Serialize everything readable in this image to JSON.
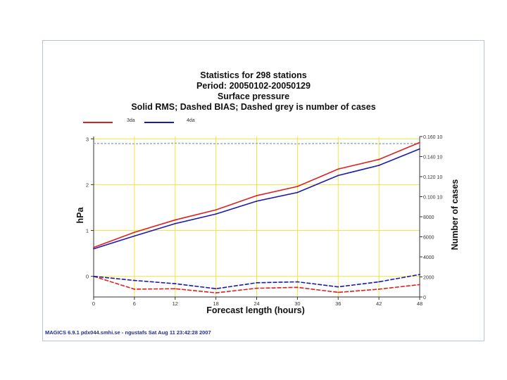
{
  "titles": {
    "line1": "Statistics for  298 stations",
    "line2": "Period: 20050102-20050129",
    "line3": "Surface pressure",
    "line4": "Solid RMS; Dashed BIAS; Dashed grey is number of cases"
  },
  "legend": [
    {
      "label": "3da",
      "color": "#e02020"
    },
    {
      "label": "4da",
      "color": "#1a1ab0"
    }
  ],
  "footer": "MAGICS 6.9.1 pdx044.smhi.se - ngustafs Sat Aug 11 23:42:28 2007",
  "colors": {
    "grid": "#f2e640",
    "cases": "#aaaaaa",
    "axis": "#333333"
  },
  "chart_data": {
    "type": "line",
    "xlabel": "Forecast length (hours)",
    "ylabel": "hPa",
    "y2label": "Number of cases",
    "x": [
      0,
      6,
      12,
      18,
      24,
      30,
      36,
      42,
      48
    ],
    "xticks": [
      "0",
      "6",
      "12",
      "18",
      "24",
      "30",
      "36",
      "42",
      "48"
    ],
    "ylim": [
      -0.45,
      3.05
    ],
    "yticks": [
      {
        "value": 3,
        "label": "3"
      },
      {
        "value": 2,
        "label": "2"
      },
      {
        "value": 1,
        "label": "1"
      },
      {
        "value": 0,
        "label": "0"
      }
    ],
    "y2lim": [
      0,
      16000
    ],
    "y2ticks": [
      {
        "value": 16000,
        "label": "0.160 10"
      },
      {
        "value": 14000,
        "label": "0.140 10"
      },
      {
        "value": 12000,
        "label": "0.120 10"
      },
      {
        "value": 10000,
        "label": "0.100 10"
      },
      {
        "value": 8000,
        "label": "8000"
      },
      {
        "value": 6000,
        "label": "6000"
      },
      {
        "value": 4000,
        "label": "4000"
      },
      {
        "value": 2000,
        "label": "2000"
      },
      {
        "value": 0,
        "label": "0"
      }
    ],
    "series": [
      {
        "name": "3da",
        "kind": "RMS",
        "color": "#e02020",
        "dash": false,
        "values": [
          0.63,
          0.96,
          1.23,
          1.45,
          1.76,
          1.96,
          2.34,
          2.55,
          2.92
        ]
      },
      {
        "name": "4da",
        "kind": "RMS",
        "color": "#1a1ab0",
        "dash": false,
        "values": [
          0.6,
          0.88,
          1.15,
          1.36,
          1.64,
          1.83,
          2.2,
          2.42,
          2.78
        ]
      },
      {
        "name": "3da",
        "kind": "BIAS",
        "color": "#e02020",
        "dash": true,
        "values": [
          0.0,
          -0.28,
          -0.27,
          -0.36,
          -0.26,
          -0.24,
          -0.35,
          -0.28,
          -0.18
        ]
      },
      {
        "name": "4da",
        "kind": "BIAS",
        "color": "#1a1ab0",
        "dash": true,
        "values": [
          0.0,
          -0.09,
          -0.16,
          -0.27,
          -0.14,
          -0.12,
          -0.23,
          -0.12,
          0.04
        ]
      }
    ],
    "cases": {
      "name": "number of cases",
      "color": "#aaaaaa",
      "values": [
        15320,
        15270,
        15330,
        15280,
        15320,
        15270,
        15330,
        15280,
        15300
      ]
    }
  }
}
